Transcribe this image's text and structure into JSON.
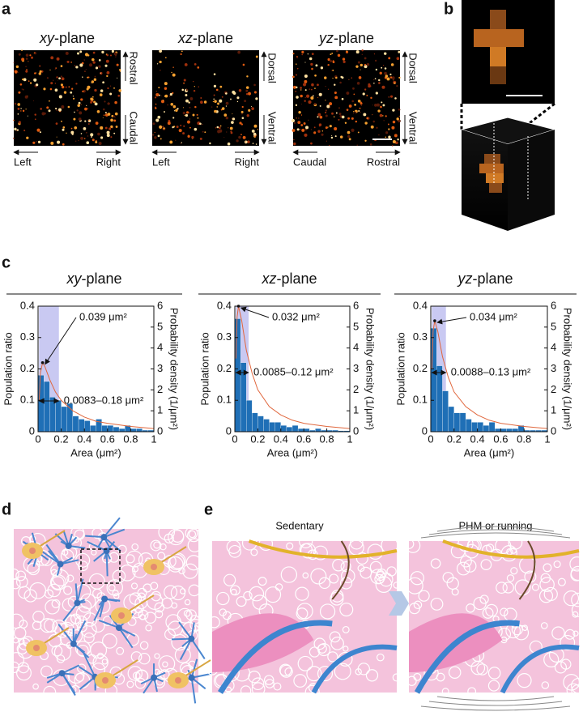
{
  "panel_labels": [
    "a",
    "b",
    "c",
    "d",
    "e"
  ],
  "panel_a": [
    {
      "title_var": "xy",
      "title_suffix": "-plane",
      "side_top": "Rostral",
      "side_bottom": "Caudal",
      "bottom_left": "Left",
      "bottom_right": "Right"
    },
    {
      "title_var": "xz",
      "title_suffix": "-plane",
      "side_top": "Dorsal",
      "side_bottom": "Ventral",
      "bottom_left": "Left",
      "bottom_right": "Right"
    },
    {
      "title_var": "yz",
      "title_suffix": "-plane",
      "side_top": "Dorsal",
      "side_bottom": "Ventral",
      "bottom_left": "Caudal",
      "bottom_right": "Rostral"
    }
  ],
  "panel_e": {
    "left_title": "Sedentary",
    "right_title": "PHM or running"
  },
  "chart_data": [
    {
      "type": "histogram",
      "title_var": "xy",
      "title_suffix": "-plane",
      "xlabel": "Area (μm²)",
      "ylabel": "Population ratio",
      "y2label": "Probability density (1/μm²)",
      "bins": [
        0,
        0.05,
        0.1,
        0.15,
        0.2,
        0.25,
        0.3,
        0.35,
        0.4,
        0.45,
        0.5,
        0.55,
        0.6,
        0.65,
        0.7,
        0.75,
        0.8,
        0.85,
        0.9,
        0.95,
        1
      ],
      "values": [
        0.18,
        0.16,
        0.11,
        0.1,
        0.08,
        0.09,
        0.05,
        0.04,
        0.035,
        0.02,
        0.04,
        0.02,
        0.02,
        0.015,
        0.01,
        0.02,
        0.01,
        0.01,
        0.005,
        0.005
      ],
      "color": "#1f6fb6",
      "curve": {
        "x": [
          0.01,
          0.02,
          0.039,
          0.06,
          0.1,
          0.15,
          0.2,
          0.3,
          0.4,
          0.5,
          0.6,
          0.8,
          1
        ],
        "values": [
          1.5,
          2.8,
          3.3,
          3.1,
          2.5,
          1.9,
          1.5,
          1.0,
          0.7,
          0.5,
          0.4,
          0.25,
          0.15
        ],
        "color": "#e0663c",
        "axis": "y2"
      },
      "peak": {
        "x": 0.039,
        "y": 3.3,
        "label": "0.039 μm²"
      },
      "range": {
        "x": [
          0.0083,
          0.18
        ],
        "label": "0.0083–0.18 μm²",
        "color": "#c9c9f2"
      },
      "xlim": [
        0,
        1
      ],
      "xticks": [
        0,
        0.2,
        0.4,
        0.6,
        0.8,
        1
      ],
      "ylim": [
        0,
        0.4
      ],
      "yticks": [
        0,
        0.1,
        0.2,
        0.3,
        0.4
      ],
      "y2lim": [
        0,
        6
      ],
      "y2ticks": [
        0,
        1,
        2,
        3,
        4,
        5,
        6
      ]
    },
    {
      "type": "histogram",
      "title_var": "xz",
      "title_suffix": "-plane",
      "xlabel": "Area (μm²)",
      "ylabel": "Population ratio",
      "y2label": "Probability density (1/μm²)",
      "bins": [
        0,
        0.05,
        0.1,
        0.15,
        0.2,
        0.25,
        0.3,
        0.35,
        0.4,
        0.45,
        0.5,
        0.55,
        0.6,
        0.65,
        0.7,
        0.75,
        0.8,
        0.85,
        0.9,
        0.95,
        1
      ],
      "values": [
        0.36,
        0.22,
        0.1,
        0.06,
        0.05,
        0.04,
        0.03,
        0.03,
        0.02,
        0.015,
        0.02,
        0.01,
        0.01,
        0.005,
        0.01,
        0.005,
        0.005,
        0.005,
        0.003,
        0.003
      ],
      "color": "#1f6fb6",
      "curve": {
        "x": [
          0.01,
          0.02,
          0.032,
          0.06,
          0.1,
          0.15,
          0.2,
          0.3,
          0.4,
          0.5,
          0.6,
          0.8,
          1
        ],
        "values": [
          3.5,
          5.5,
          6.0,
          5.3,
          3.9,
          2.8,
          2.0,
          1.2,
          0.8,
          0.55,
          0.4,
          0.25,
          0.15
        ],
        "color": "#e0663c",
        "axis": "y2"
      },
      "peak": {
        "x": 0.032,
        "y": 6.0,
        "label": "0.032 μm²"
      },
      "range": {
        "x": [
          0.0085,
          0.12
        ],
        "label": "0.0085–0.12 μm²",
        "color": "#c9c9f2"
      },
      "xlim": [
        0,
        1
      ],
      "xticks": [
        0,
        0.2,
        0.4,
        0.6,
        0.8,
        1
      ],
      "ylim": [
        0,
        0.4
      ],
      "yticks": [
        0,
        0.1,
        0.2,
        0.3,
        0.4
      ],
      "y2lim": [
        0,
        6
      ],
      "y2ticks": [
        0,
        1,
        2,
        3,
        4,
        5,
        6
      ]
    },
    {
      "type": "histogram",
      "title_var": "yz",
      "title_suffix": "-plane",
      "xlabel": "Area (μm²)",
      "ylabel": "Population ratio",
      "y2label": "Probability density (1/μm²)",
      "bins": [
        0,
        0.05,
        0.1,
        0.15,
        0.2,
        0.25,
        0.3,
        0.35,
        0.4,
        0.45,
        0.5,
        0.55,
        0.6,
        0.65,
        0.7,
        0.75,
        0.8,
        0.85,
        0.9,
        0.95,
        1
      ],
      "values": [
        0.33,
        0.21,
        0.13,
        0.08,
        0.06,
        0.06,
        0.04,
        0.03,
        0.03,
        0.02,
        0.03,
        0.01,
        0.01,
        0.01,
        0.01,
        0.02,
        0.005,
        0.005,
        0.005,
        0.005
      ],
      "color": "#1f6fb6",
      "curve": {
        "x": [
          0.01,
          0.02,
          0.034,
          0.06,
          0.1,
          0.15,
          0.2,
          0.3,
          0.4,
          0.5,
          0.6,
          0.8,
          1
        ],
        "values": [
          3.0,
          4.8,
          5.3,
          4.8,
          3.6,
          2.6,
          1.9,
          1.2,
          0.8,
          0.55,
          0.4,
          0.25,
          0.15
        ],
        "color": "#e0663c",
        "axis": "y2"
      },
      "peak": {
        "x": 0.034,
        "y": 5.3,
        "label": "0.034 μm²"
      },
      "range": {
        "x": [
          0.0088,
          0.13
        ],
        "label": "0.0088–0.13 μm²",
        "color": "#c9c9f2"
      },
      "xlim": [
        0,
        1
      ],
      "xticks": [
        0,
        0.2,
        0.4,
        0.6,
        0.8,
        1
      ],
      "ylim": [
        0,
        0.4
      ],
      "yticks": [
        0,
        0.1,
        0.2,
        0.3,
        0.4
      ],
      "y2lim": [
        0,
        6
      ],
      "y2ticks": [
        0,
        1,
        2,
        3,
        4,
        5,
        6
      ]
    }
  ]
}
